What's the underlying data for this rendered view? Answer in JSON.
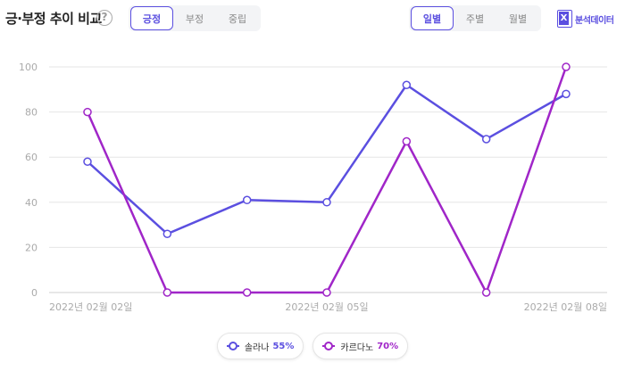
{
  "header": {
    "title": "긍·부정 추이 비교",
    "help_icon": "?",
    "sentiment_tabs": [
      {
        "label": "긍정",
        "active": true
      },
      {
        "label": "부정",
        "active": false
      },
      {
        "label": "중립",
        "active": false
      }
    ],
    "period_tabs": [
      {
        "label": "일별",
        "active": true
      },
      {
        "label": "주별",
        "active": false
      },
      {
        "label": "월별",
        "active": false
      }
    ],
    "excel_icon": "excel-icon",
    "export_label": "분석데이터"
  },
  "legend": [
    {
      "name": "솔라나",
      "pct": "55%",
      "color": "#5b4fe0"
    },
    {
      "name": "카르다노",
      "pct": "70%",
      "color": "#a026c8"
    }
  ],
  "chart_data": {
    "type": "line",
    "x": [
      "2022-02-02",
      "2022-02-03",
      "2022-02-04",
      "2022-02-05",
      "2022-02-06",
      "2022-02-07",
      "2022-02-08"
    ],
    "x_tick_labels": [
      "2022년 02월 02일",
      "",
      "",
      "2022년 02월 05일",
      "",
      "",
      "2022년 02월 08일"
    ],
    "ylim": [
      0,
      100
    ],
    "y_ticks": [
      0,
      20,
      40,
      60,
      80,
      100
    ],
    "grid": true,
    "legend_position": "bottom",
    "series": [
      {
        "name": "솔라나",
        "color": "#5b4fe0",
        "values": [
          58,
          26,
          41,
          40,
          92,
          68,
          88
        ]
      },
      {
        "name": "카르다노",
        "color": "#a026c8",
        "values": [
          80,
          0,
          0,
          0,
          67,
          0,
          100
        ]
      }
    ]
  }
}
